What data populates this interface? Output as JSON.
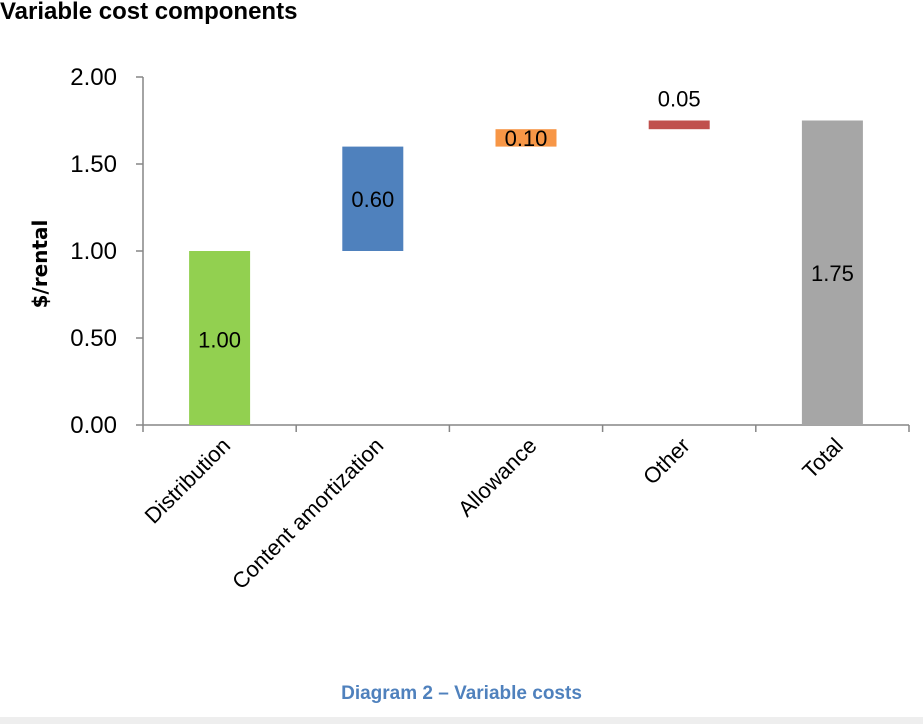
{
  "chart_data": {
    "type": "bar",
    "subtype": "waterfall",
    "title": "Variable cost components",
    "ylabel": "$/rental",
    "xlabel": "",
    "ylim": [
      0,
      2
    ],
    "yticks": [
      "0.00",
      "0.50",
      "1.00",
      "1.50",
      "2.00"
    ],
    "grid": false,
    "categories": [
      "Distribution",
      "Content amortization",
      "Allowance",
      "Other",
      "Total"
    ],
    "values": [
      1.0,
      0.6,
      0.1,
      0.05,
      1.75
    ],
    "bases": [
      0,
      1.0,
      1.6,
      1.7,
      0
    ],
    "labels": [
      "1.00",
      "0.60",
      "0.10",
      "0.05",
      "1.75"
    ],
    "colors": [
      "#92d050",
      "#4f81bd",
      "#f79646",
      "#c0504d",
      "#a6a6a6"
    ]
  },
  "caption": "Diagram 2 – Variable costs"
}
